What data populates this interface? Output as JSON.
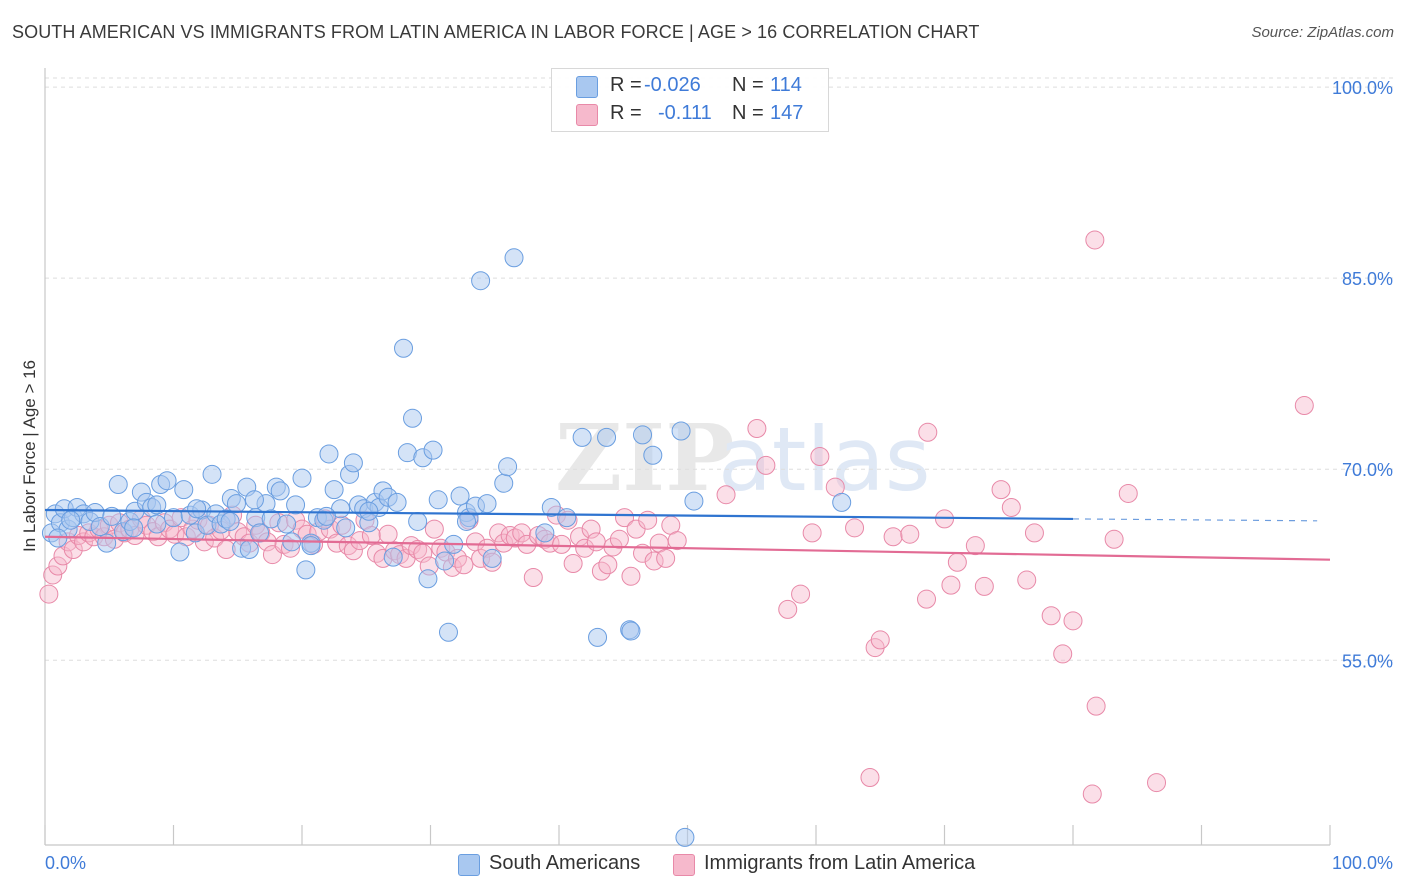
{
  "header": {
    "title": "SOUTH AMERICAN VS IMMIGRANTS FROM LATIN AMERICA IN LABOR FORCE | AGE > 16 CORRELATION CHART",
    "source": "Source: ZipAtlas.com"
  },
  "legend": {
    "rows": [
      {
        "r_label": "R =",
        "r_value": "-0.026",
        "n_label": "N =",
        "n_value": "114"
      },
      {
        "r_label": "R =",
        "r_value": "-0.111",
        "n_label": "N =",
        "n_value": "147"
      }
    ]
  },
  "colors": {
    "blue_fill": "#a9c8f0",
    "blue_stroke": "#6a9ee0",
    "blue_line": "#2f74d0",
    "pink_fill": "#f6b9cc",
    "pink_stroke": "#e889a8",
    "pink_line": "#e26b94",
    "tick_label": "#3f7bd8",
    "grid": "#dddddd"
  },
  "chart_data": {
    "type": "scatter",
    "title": "SOUTH AMERICAN VS IMMIGRANTS FROM LATIN AMERICA IN LABOR FORCE | AGE > 16 CORRELATION CHART",
    "xlabel": "",
    "ylabel": "In Labor Force | Age > 16",
    "xlim": [
      0,
      100
    ],
    "ylim": [
      40.5,
      101.5
    ],
    "x_tick_labels": [
      "0.0%",
      "100.0%"
    ],
    "y_ticks": [
      55,
      70,
      85,
      100
    ],
    "y_tick_labels": [
      "55.0%",
      "70.0%",
      "85.0%",
      "100.0%"
    ],
    "grid": true,
    "legend_position": "bottom",
    "watermark": "ZIPatlas",
    "series": [
      {
        "name": "South Americans",
        "color": "#a9c8f0",
        "r": -0.026,
        "n": 114,
        "trend": {
          "x0": 0,
          "y0": 66.8,
          "x1": 80,
          "y1": 66.1,
          "dashed_to_x": 99,
          "dashed_to_y": 65.95
        },
        "points": [
          [
            0.5,
            65.0
          ],
          [
            0.8,
            66.5
          ],
          [
            1.2,
            65.8
          ],
          [
            1.5,
            66.9
          ],
          [
            1.8,
            65.3
          ],
          [
            2.2,
            66.2
          ],
          [
            2.5,
            67.0
          ],
          [
            3.0,
            66.5
          ],
          [
            3.5,
            65.9
          ],
          [
            3.9,
            66.6
          ],
          [
            4.3,
            65.5
          ],
          [
            4.8,
            64.2
          ],
          [
            5.2,
            66.3
          ],
          [
            5.7,
            68.8
          ],
          [
            6.1,
            65.1
          ],
          [
            6.6,
            65.9
          ],
          [
            7.0,
            66.7
          ],
          [
            7.5,
            68.2
          ],
          [
            7.9,
            67.4
          ],
          [
            8.3,
            67.0
          ],
          [
            8.7,
            65.7
          ],
          [
            9.0,
            68.8
          ],
          [
            9.5,
            69.1
          ],
          [
            10.0,
            66.2
          ],
          [
            10.5,
            63.5
          ],
          [
            10.8,
            68.4
          ],
          [
            11.3,
            66.4
          ],
          [
            11.7,
            65.0
          ],
          [
            12.2,
            66.8
          ],
          [
            12.6,
            65.6
          ],
          [
            13.0,
            69.6
          ],
          [
            13.3,
            66.5
          ],
          [
            13.7,
            65.7
          ],
          [
            14.1,
            66.1
          ],
          [
            14.5,
            67.7
          ],
          [
            14.9,
            67.3
          ],
          [
            15.3,
            63.8
          ],
          [
            15.7,
            68.6
          ],
          [
            15.9,
            63.7
          ],
          [
            16.4,
            66.2
          ],
          [
            16.7,
            65.0
          ],
          [
            17.2,
            67.3
          ],
          [
            17.6,
            66.1
          ],
          [
            18.0,
            68.6
          ],
          [
            18.3,
            68.3
          ],
          [
            18.8,
            65.7
          ],
          [
            19.2,
            64.3
          ],
          [
            19.5,
            67.2
          ],
          [
            20.0,
            69.3
          ],
          [
            20.3,
            62.1
          ],
          [
            20.7,
            64.2
          ],
          [
            21.2,
            66.2
          ],
          [
            21.7,
            66.0
          ],
          [
            22.1,
            71.2
          ],
          [
            22.5,
            68.4
          ],
          [
            23.0,
            66.9
          ],
          [
            23.4,
            65.4
          ],
          [
            23.7,
            69.6
          ],
          [
            24.0,
            70.5
          ],
          [
            24.4,
            67.2
          ],
          [
            24.8,
            66.9
          ],
          [
            25.2,
            65.8
          ],
          [
            25.7,
            67.4
          ],
          [
            26.0,
            67.0
          ],
          [
            26.3,
            68.3
          ],
          [
            26.7,
            67.8
          ],
          [
            27.1,
            63.1
          ],
          [
            27.4,
            67.4
          ],
          [
            27.9,
            79.5
          ],
          [
            28.2,
            71.3
          ],
          [
            28.6,
            74.0
          ],
          [
            29.0,
            65.9
          ],
          [
            29.4,
            70.9
          ],
          [
            29.8,
            61.4
          ],
          [
            30.2,
            71.5
          ],
          [
            30.6,
            67.6
          ],
          [
            31.1,
            62.8
          ],
          [
            31.4,
            57.2
          ],
          [
            31.8,
            64.1
          ],
          [
            32.3,
            67.9
          ],
          [
            32.8,
            66.6
          ],
          [
            33.0,
            66.2
          ],
          [
            33.5,
            67.1
          ],
          [
            33.9,
            84.8
          ],
          [
            34.4,
            67.3
          ],
          [
            34.8,
            63.0
          ],
          [
            35.7,
            68.9
          ],
          [
            36.0,
            70.2
          ],
          [
            36.5,
            86.6
          ],
          [
            38.9,
            65.0
          ],
          [
            39.4,
            67.0
          ],
          [
            41.8,
            72.5
          ],
          [
            43.0,
            56.8
          ],
          [
            43.7,
            72.5
          ],
          [
            45.5,
            57.4
          ],
          [
            45.6,
            57.3
          ],
          [
            46.5,
            72.7
          ],
          [
            47.3,
            71.1
          ],
          [
            49.5,
            73.0
          ],
          [
            50.5,
            67.5
          ],
          [
            62.0,
            67.4
          ],
          [
            49.8,
            41.1
          ],
          [
            20.7,
            64.0
          ],
          [
            16.3,
            67.6
          ],
          [
            2.0,
            66.0
          ],
          [
            1.0,
            64.6
          ],
          [
            6.9,
            65.4
          ],
          [
            8.7,
            67.2
          ],
          [
            14.4,
            65.9
          ],
          [
            11.8,
            66.9
          ],
          [
            25.2,
            66.7
          ],
          [
            21.9,
            66.3
          ],
          [
            32.8,
            65.9
          ],
          [
            40.6,
            66.2
          ]
        ]
      },
      {
        "name": "Immigrants from Latin America",
        "color": "#f6b9cc",
        "r": -0.111,
        "n": 147,
        "trend": {
          "x0": 0,
          "y0": 64.7,
          "x1": 100,
          "y1": 62.9
        },
        "points": [
          [
            0.3,
            60.2
          ],
          [
            0.6,
            61.7
          ],
          [
            1.0,
            62.4
          ],
          [
            1.4,
            63.2
          ],
          [
            1.8,
            64.3
          ],
          [
            2.2,
            63.7
          ],
          [
            2.6,
            64.8
          ],
          [
            3.0,
            64.3
          ],
          [
            3.4,
            65.0
          ],
          [
            3.8,
            64.7
          ],
          [
            4.2,
            65.3
          ],
          [
            4.6,
            64.7
          ],
          [
            5.0,
            65.6
          ],
          [
            5.4,
            64.5
          ],
          [
            5.8,
            65.8
          ],
          [
            6.2,
            65.0
          ],
          [
            6.6,
            65.3
          ],
          [
            7.0,
            64.8
          ],
          [
            7.5,
            66.1
          ],
          [
            7.9,
            65.6
          ],
          [
            8.4,
            65.1
          ],
          [
            8.8,
            64.7
          ],
          [
            9.3,
            65.8
          ],
          [
            9.7,
            65.3
          ],
          [
            10.1,
            64.9
          ],
          [
            10.6,
            66.2
          ],
          [
            11.0,
            64.7
          ],
          [
            11.5,
            65.3
          ],
          [
            11.9,
            66.0
          ],
          [
            12.4,
            64.3
          ],
          [
            12.8,
            65.6
          ],
          [
            13.2,
            64.6
          ],
          [
            13.7,
            65.2
          ],
          [
            14.1,
            63.7
          ],
          [
            14.6,
            66.4
          ],
          [
            15.0,
            65.1
          ],
          [
            15.5,
            64.7
          ],
          [
            15.9,
            64.2
          ],
          [
            16.4,
            65.6
          ],
          [
            16.8,
            65.0
          ],
          [
            17.3,
            64.3
          ],
          [
            17.7,
            63.3
          ],
          [
            18.2,
            65.8
          ],
          [
            18.6,
            64.1
          ],
          [
            19.1,
            63.8
          ],
          [
            19.5,
            66.0
          ],
          [
            20.0,
            65.3
          ],
          [
            20.4,
            64.9
          ],
          [
            20.9,
            64.1
          ],
          [
            21.3,
            65.1
          ],
          [
            21.8,
            66.1
          ],
          [
            22.2,
            65.3
          ],
          [
            22.7,
            64.2
          ],
          [
            23.1,
            65.6
          ],
          [
            23.6,
            64.0
          ],
          [
            24.0,
            63.6
          ],
          [
            24.5,
            64.4
          ],
          [
            24.9,
            66.0
          ],
          [
            25.4,
            64.8
          ],
          [
            25.8,
            63.4
          ],
          [
            26.3,
            63.0
          ],
          [
            26.7,
            64.9
          ],
          [
            27.2,
            63.6
          ],
          [
            27.6,
            63.3
          ],
          [
            28.1,
            63.0
          ],
          [
            28.5,
            64.0
          ],
          [
            29.0,
            63.7
          ],
          [
            29.4,
            63.4
          ],
          [
            29.9,
            62.4
          ],
          [
            30.3,
            65.3
          ],
          [
            30.8,
            63.8
          ],
          [
            31.2,
            63.5
          ],
          [
            31.7,
            62.3
          ],
          [
            32.1,
            63.0
          ],
          [
            32.6,
            62.5
          ],
          [
            33.0,
            66.0
          ],
          [
            33.5,
            64.3
          ],
          [
            33.9,
            63.0
          ],
          [
            34.4,
            63.8
          ],
          [
            34.8,
            62.7
          ],
          [
            35.3,
            65.0
          ],
          [
            35.7,
            64.2
          ],
          [
            36.2,
            64.8
          ],
          [
            36.6,
            64.6
          ],
          [
            37.1,
            65.0
          ],
          [
            37.5,
            64.1
          ],
          [
            38.0,
            61.5
          ],
          [
            38.4,
            64.8
          ],
          [
            38.9,
            64.5
          ],
          [
            39.3,
            64.2
          ],
          [
            39.8,
            66.4
          ],
          [
            40.2,
            64.1
          ],
          [
            40.7,
            66.0
          ],
          [
            41.1,
            62.6
          ],
          [
            41.6,
            64.7
          ],
          [
            42.0,
            63.8
          ],
          [
            42.5,
            65.3
          ],
          [
            42.9,
            64.3
          ],
          [
            43.3,
            62.0
          ],
          [
            43.8,
            62.5
          ],
          [
            44.2,
            63.9
          ],
          [
            44.7,
            64.5
          ],
          [
            45.1,
            66.2
          ],
          [
            45.6,
            61.6
          ],
          [
            46.0,
            65.3
          ],
          [
            46.5,
            63.4
          ],
          [
            46.9,
            66.0
          ],
          [
            47.4,
            62.8
          ],
          [
            47.8,
            64.2
          ],
          [
            48.3,
            63.0
          ],
          [
            48.7,
            65.6
          ],
          [
            49.2,
            64.4
          ],
          [
            53.0,
            68.0
          ],
          [
            55.4,
            73.2
          ],
          [
            56.1,
            70.3
          ],
          [
            57.8,
            59.0
          ],
          [
            58.8,
            60.2
          ],
          [
            64.2,
            45.8
          ],
          [
            64.6,
            56.0
          ],
          [
            65.0,
            56.6
          ],
          [
            68.6,
            59.8
          ],
          [
            68.7,
            72.9
          ],
          [
            71.0,
            62.7
          ],
          [
            73.1,
            60.8
          ],
          [
            76.4,
            61.3
          ],
          [
            77.0,
            65.0
          ],
          [
            78.3,
            58.5
          ],
          [
            79.2,
            55.5
          ],
          [
            80.0,
            58.1
          ],
          [
            81.8,
            51.4
          ],
          [
            81.5,
            44.5
          ],
          [
            81.7,
            88.0
          ],
          [
            83.2,
            64.5
          ],
          [
            84.3,
            68.1
          ],
          [
            86.5,
            45.4
          ],
          [
            98.0,
            75.0
          ],
          [
            59.7,
            65.0
          ],
          [
            60.3,
            71.0
          ],
          [
            61.5,
            68.6
          ],
          [
            63.0,
            65.4
          ],
          [
            66.0,
            64.7
          ],
          [
            70.0,
            66.1
          ],
          [
            72.4,
            64.0
          ],
          [
            74.4,
            68.4
          ],
          [
            75.2,
            67.0
          ],
          [
            70.5,
            60.9
          ],
          [
            67.3,
            64.9
          ]
        ]
      }
    ]
  },
  "bottom_legend": {
    "items": [
      {
        "label": "South Americans"
      },
      {
        "label": "Immigrants from Latin America"
      }
    ]
  }
}
